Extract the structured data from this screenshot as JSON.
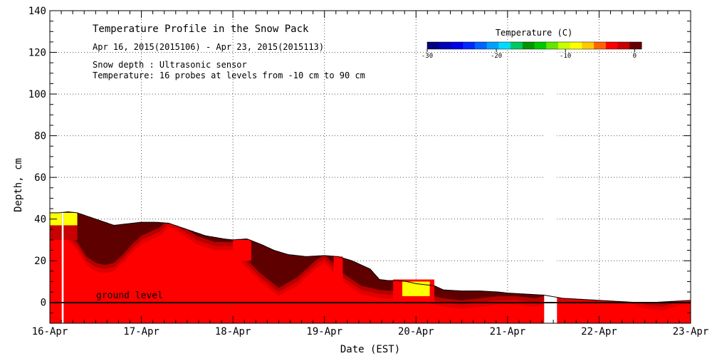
{
  "chart_data": {
    "type": "area",
    "title": "Temperature Profile in the Snow Pack",
    "subtitle": "Apr 16, 2015(2015106) - Apr 23, 2015(2015113)",
    "notes": [
      "Snow depth : Ultrasonic sensor",
      "Temperature: 16 probes at levels from -10 cm to 90 cm"
    ],
    "xlabel": "Date (EST)",
    "ylabel": "Depth, cm",
    "xlim": [
      0,
      7
    ],
    "ylim": [
      -10,
      140
    ],
    "grid": true,
    "x_tick_labels": [
      "16-Apr",
      "17-Apr",
      "18-Apr",
      "19-Apr",
      "20-Apr",
      "21-Apr",
      "22-Apr",
      "23-Apr"
    ],
    "y_ticks": [
      0,
      20,
      40,
      60,
      80,
      100,
      120,
      140
    ],
    "ground_level_label": "ground level",
    "ground_level": 0,
    "missing_data": [
      [
        0.13,
        0.15
      ],
      [
        5.4,
        5.54
      ]
    ],
    "snow_depth": {
      "x": [
        0,
        0.1,
        0.2,
        0.3,
        0.5,
        0.7,
        0.9,
        1.0,
        1.15,
        1.3,
        1.5,
        1.7,
        1.9,
        2.0,
        2.15,
        2.3,
        2.45,
        2.6,
        2.8,
        3.0,
        3.15,
        3.3,
        3.5,
        3.6,
        3.7,
        3.8,
        3.9,
        4.0,
        4.2,
        4.3,
        4.5,
        4.7,
        4.9,
        5.0,
        5.2,
        5.4,
        5.6,
        5.8,
        6.0,
        6.2,
        6.4,
        6.6,
        6.8,
        7.0
      ],
      "y": [
        43,
        43,
        43.5,
        43,
        40,
        37,
        38,
        38.5,
        38.5,
        38,
        35,
        32,
        30.5,
        30,
        30.5,
        28,
        25,
        23,
        22,
        22.5,
        22,
        20,
        16,
        11,
        10.5,
        10.5,
        10,
        9,
        8,
        6,
        5.5,
        5.5,
        5,
        4.5,
        4,
        3.5,
        2,
        1.5,
        1,
        0.5,
        0,
        0,
        0.5,
        1
      ]
    },
    "warm_layer_top": {
      "x": [
        0,
        0.1,
        0.2,
        0.3,
        0.4,
        0.5,
        0.6,
        0.7,
        0.8,
        0.9,
        1.0,
        1.2,
        1.3,
        1.4,
        1.6,
        1.8,
        2.0,
        2.1,
        2.3,
        2.5,
        2.7,
        2.9,
        3.0,
        3.2,
        3.4,
        3.6,
        3.9,
        4.1,
        4.3,
        4.5,
        4.7,
        4.9,
        5.1,
        5.3,
        5.5,
        5.7,
        5.9,
        6.1,
        6.3,
        6.5,
        6.7,
        6.9,
        7.0
      ],
      "y": [
        30,
        30,
        30,
        25,
        18,
        15,
        14,
        15,
        19,
        24,
        28,
        32,
        36,
        34,
        28,
        25,
        25,
        19,
        10,
        3,
        8,
        16,
        19,
        10,
        4,
        2,
        1,
        0,
        -2,
        -3,
        -2,
        -1,
        -1,
        -2,
        0,
        0,
        0,
        0,
        0,
        -3,
        -4,
        -1,
        -1
      ]
    },
    "probe_bands": [
      {
        "x0": 0.0,
        "x1": 0.13,
        "y0": 30,
        "y1": 37,
        "temp_c": -2
      },
      {
        "x0": 0.0,
        "x1": 0.13,
        "y0": 37,
        "y1": 43,
        "temp_c": -9
      },
      {
        "x0": 0.15,
        "x1": 0.3,
        "y0": 30,
        "y1": 37,
        "temp_c": -2
      },
      {
        "x0": 0.15,
        "x1": 0.3,
        "y0": 37,
        "y1": 43,
        "temp_c": -9
      },
      {
        "x0": 2.0,
        "x1": 2.2,
        "y0": 20,
        "y1": 30,
        "temp_c": -3
      },
      {
        "x0": 3.1,
        "x1": 3.2,
        "y0": 10,
        "y1": 22,
        "temp_c": -3
      },
      {
        "x0": 3.75,
        "x1": 4.2,
        "y0": 0,
        "y1": 11,
        "temp_c": -4
      },
      {
        "x0": 3.85,
        "x1": 4.15,
        "y0": 3,
        "y1": 10,
        "temp_c": -9
      }
    ],
    "colorbar": {
      "label": "Temperature (C)",
      "tick_labels": [
        "-30",
        "-20",
        "-10",
        "0"
      ],
      "tick_values": [
        -30,
        -20,
        -10,
        0
      ],
      "min": -30,
      "max": 1,
      "colors": [
        "#000080",
        "#0000b4",
        "#0000e6",
        "#0028ff",
        "#0064ff",
        "#00a0ff",
        "#00dcff",
        "#00c864",
        "#009600",
        "#00c800",
        "#64e600",
        "#c8ff00",
        "#ffff00",
        "#ffc800",
        "#ff6400",
        "#ff0000",
        "#c80000",
        "#640000"
      ]
    },
    "colors": {
      "dark_snow": "#5e0000",
      "mid_band_1": "#b70000",
      "mid_band_2": "#e00000",
      "warm": "#ff0000",
      "gap": "#ffffff"
    }
  }
}
